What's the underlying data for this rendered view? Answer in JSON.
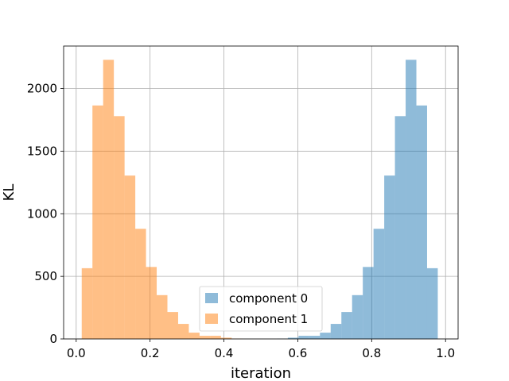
{
  "chart_data": {
    "type": "bar",
    "title": "",
    "xlabel": "iteration",
    "ylabel": "KL",
    "xlim": [
      -0.034,
      1.034
    ],
    "ylim": [
      0,
      2340
    ],
    "xticks": [
      0.0,
      0.2,
      0.4,
      0.6,
      0.8,
      1.0
    ],
    "xtick_labels": [
      "0.0",
      "0.2",
      "0.4",
      "0.6",
      "0.8",
      "1.0"
    ],
    "yticks": [
      0,
      500,
      1000,
      1500,
      2000
    ],
    "ytick_labels": [
      "0",
      "500",
      "1000",
      "1500",
      "2000"
    ],
    "grid": true,
    "legend_placement": "lower center",
    "series": [
      {
        "name": "component 0",
        "color": "#1f77b4",
        "alpha": 0.5,
        "bin_edges": [
          0.544,
          0.573,
          0.602,
          0.631,
          0.66,
          0.689,
          0.718,
          0.747,
          0.776,
          0.805,
          0.834,
          0.863,
          0.892,
          0.921,
          0.95,
          0.979
        ],
        "counts": [
          2,
          10,
          25,
          25,
          50,
          120,
          215,
          350,
          575,
          880,
          1305,
          1780,
          2230,
          1865,
          565
        ]
      },
      {
        "name": "component 1",
        "color": "#ff7f0e",
        "alpha": 0.5,
        "bin_edges": [
          0.015,
          0.044,
          0.073,
          0.102,
          0.131,
          0.16,
          0.189,
          0.218,
          0.247,
          0.276,
          0.305,
          0.334,
          0.363,
          0.392,
          0.421,
          0.45
        ],
        "counts": [
          565,
          1865,
          2230,
          1780,
          1305,
          880,
          575,
          350,
          215,
          120,
          50,
          25,
          25,
          10,
          2
        ]
      }
    ]
  }
}
